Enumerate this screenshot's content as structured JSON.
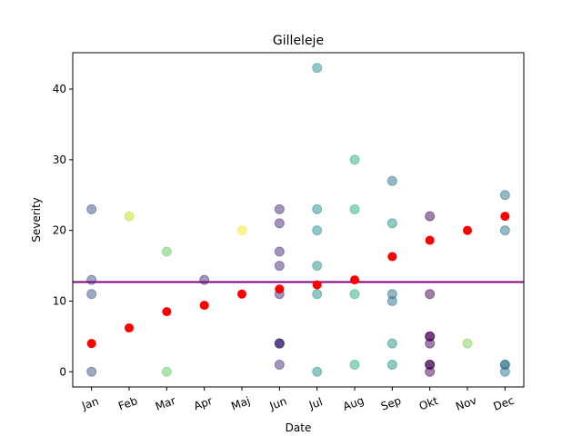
{
  "chart_data": {
    "type": "scatter",
    "title": "Gilleleje",
    "xlabel": "Date",
    "ylabel": "Severity",
    "categories": [
      "Jan",
      "Feb",
      "Mar",
      "Apr",
      "Maj",
      "Jun",
      "Jul",
      "Aug",
      "Sep",
      "Okt",
      "Nov",
      "Dec"
    ],
    "ylim": [
      -2.15,
      45.15
    ],
    "yticks": [
      0,
      10,
      20,
      30,
      40
    ],
    "grid": false,
    "mean_line": {
      "y": 12.7,
      "color": "#800080"
    },
    "means": [
      {
        "x": "Jan",
        "y": 4
      },
      {
        "x": "Feb",
        "y": 6.2
      },
      {
        "x": "Mar",
        "y": 8.5
      },
      {
        "x": "Apr",
        "y": 9.4
      },
      {
        "x": "Maj",
        "y": 11
      },
      {
        "x": "Jun",
        "y": 11.7
      },
      {
        "x": "Jul",
        "y": 12.3
      },
      {
        "x": "Aug",
        "y": 13
      },
      {
        "x": "Sep",
        "y": 16.3
      },
      {
        "x": "Okt",
        "y": 18.6
      },
      {
        "x": "Nov",
        "y": 20
      },
      {
        "x": "Dec",
        "y": 22
      }
    ],
    "mean_color": "#ff0000",
    "points": [
      {
        "x": "Jan",
        "y": 23,
        "color": "#3b528b"
      },
      {
        "x": "Jan",
        "y": 13,
        "color": "#3b528b"
      },
      {
        "x": "Jan",
        "y": 11,
        "color": "#3b528b"
      },
      {
        "x": "Jan",
        "y": 0,
        "color": "#3b528b"
      },
      {
        "x": "Feb",
        "y": 22,
        "color": "#bddf26"
      },
      {
        "x": "Mar",
        "y": 17,
        "color": "#5ec962"
      },
      {
        "x": "Mar",
        "y": 0,
        "color": "#5ec962"
      },
      {
        "x": "Apr",
        "y": 13,
        "color": "#472d7b"
      },
      {
        "x": "Maj",
        "y": 20,
        "color": "#fde725"
      },
      {
        "x": "Jun",
        "y": 23,
        "color": "#472d7b"
      },
      {
        "x": "Jun",
        "y": 21,
        "color": "#472d7b"
      },
      {
        "x": "Jun",
        "y": 17,
        "color": "#472d7b"
      },
      {
        "x": "Jun",
        "y": 15,
        "color": "#472d7b"
      },
      {
        "x": "Jun",
        "y": 11,
        "color": "#472d7b"
      },
      {
        "x": "Jun",
        "y": 4,
        "color": "#472d7b"
      },
      {
        "x": "Jun",
        "y": 4,
        "color": "#472d7b"
      },
      {
        "x": "Jun",
        "y": 4,
        "color": "#472d7b"
      },
      {
        "x": "Jun",
        "y": 1,
        "color": "#472d7b"
      },
      {
        "x": "Jul",
        "y": 43,
        "color": "#21918c"
      },
      {
        "x": "Jul",
        "y": 23,
        "color": "#21918c"
      },
      {
        "x": "Jul",
        "y": 20,
        "color": "#21918c"
      },
      {
        "x": "Jul",
        "y": 15,
        "color": "#21918c"
      },
      {
        "x": "Jul",
        "y": 11,
        "color": "#21918c"
      },
      {
        "x": "Jul",
        "y": 0,
        "color": "#21918c"
      },
      {
        "x": "Aug",
        "y": 30,
        "color": "#28ae80"
      },
      {
        "x": "Aug",
        "y": 23,
        "color": "#28ae80"
      },
      {
        "x": "Aug",
        "y": 11,
        "color": "#28ae80"
      },
      {
        "x": "Aug",
        "y": 1,
        "color": "#28ae80"
      },
      {
        "x": "Sep",
        "y": 27,
        "color": "#2c728e"
      },
      {
        "x": "Sep",
        "y": 21,
        "color": "#21918c"
      },
      {
        "x": "Sep",
        "y": 11,
        "color": "#2c728e"
      },
      {
        "x": "Sep",
        "y": 10,
        "color": "#2c728e"
      },
      {
        "x": "Sep",
        "y": 4,
        "color": "#21918c"
      },
      {
        "x": "Sep",
        "y": 1,
        "color": "#21918c"
      },
      {
        "x": "Okt",
        "y": 22,
        "color": "#440154"
      },
      {
        "x": "Okt",
        "y": 11,
        "color": "#440154"
      },
      {
        "x": "Okt",
        "y": 5,
        "color": "#440154"
      },
      {
        "x": "Okt",
        "y": 5,
        "color": "#440154"
      },
      {
        "x": "Okt",
        "y": 4,
        "color": "#440154"
      },
      {
        "x": "Okt",
        "y": 1,
        "color": "#440154"
      },
      {
        "x": "Okt",
        "y": 1,
        "color": "#440154"
      },
      {
        "x": "Okt",
        "y": 0,
        "color": "#440154"
      },
      {
        "x": "Nov",
        "y": 4,
        "color": "#7ad151"
      },
      {
        "x": "Dec",
        "y": 25,
        "color": "#2c728e"
      },
      {
        "x": "Dec",
        "y": 20,
        "color": "#2c728e"
      },
      {
        "x": "Dec",
        "y": 1,
        "color": "#2c728e"
      },
      {
        "x": "Dec",
        "y": 1,
        "color": "#2c728e"
      },
      {
        "x": "Dec",
        "y": 0,
        "color": "#2c728e"
      }
    ]
  }
}
